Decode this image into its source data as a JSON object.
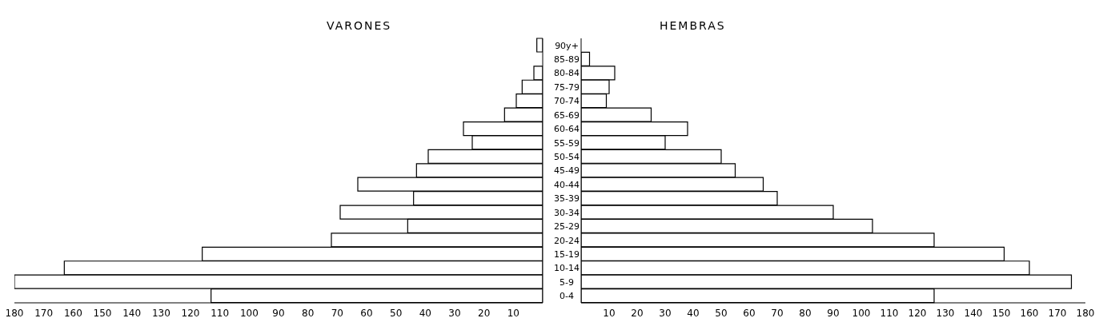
{
  "chart_data": [
    {
      "type": "bar",
      "orientation": "horizontal",
      "title": "VARONES",
      "categories": [
        "90y+",
        "85-89",
        "80-84",
        "75-79",
        "70-74",
        "65-69",
        "60-64",
        "55-59",
        "50-54",
        "45-49",
        "40-44",
        "35-39",
        "30-34",
        "25-29",
        "20-24",
        "15-19",
        "10-14",
        "5-9",
        "0-4"
      ],
      "values": [
        2,
        0,
        3,
        7,
        9,
        13,
        27,
        24,
        39,
        43,
        63,
        44,
        69,
        46,
        72,
        116,
        163,
        180,
        113
      ],
      "color": "#ffffff",
      "xlim": [
        180,
        0
      ],
      "xticks": [
        10,
        20,
        30,
        40,
        50,
        60,
        70,
        80,
        90,
        100,
        110,
        120,
        130,
        140,
        150,
        160,
        170,
        180
      ]
    },
    {
      "type": "bar",
      "orientation": "horizontal",
      "title": "HEMBRAS",
      "values": [
        0,
        3,
        12,
        10,
        9,
        25,
        38,
        30,
        50,
        55,
        65,
        70,
        90,
        104,
        126,
        151,
        160,
        175,
        126
      ],
      "color": "#ffffff",
      "xlim": [
        0,
        180
      ],
      "xticks": [
        10,
        20,
        30,
        40,
        50,
        60,
        70,
        80,
        90,
        100,
        110,
        120,
        130,
        140,
        150,
        160,
        170,
        180
      ],
      "tick_labels": "x"
    }
  ]
}
